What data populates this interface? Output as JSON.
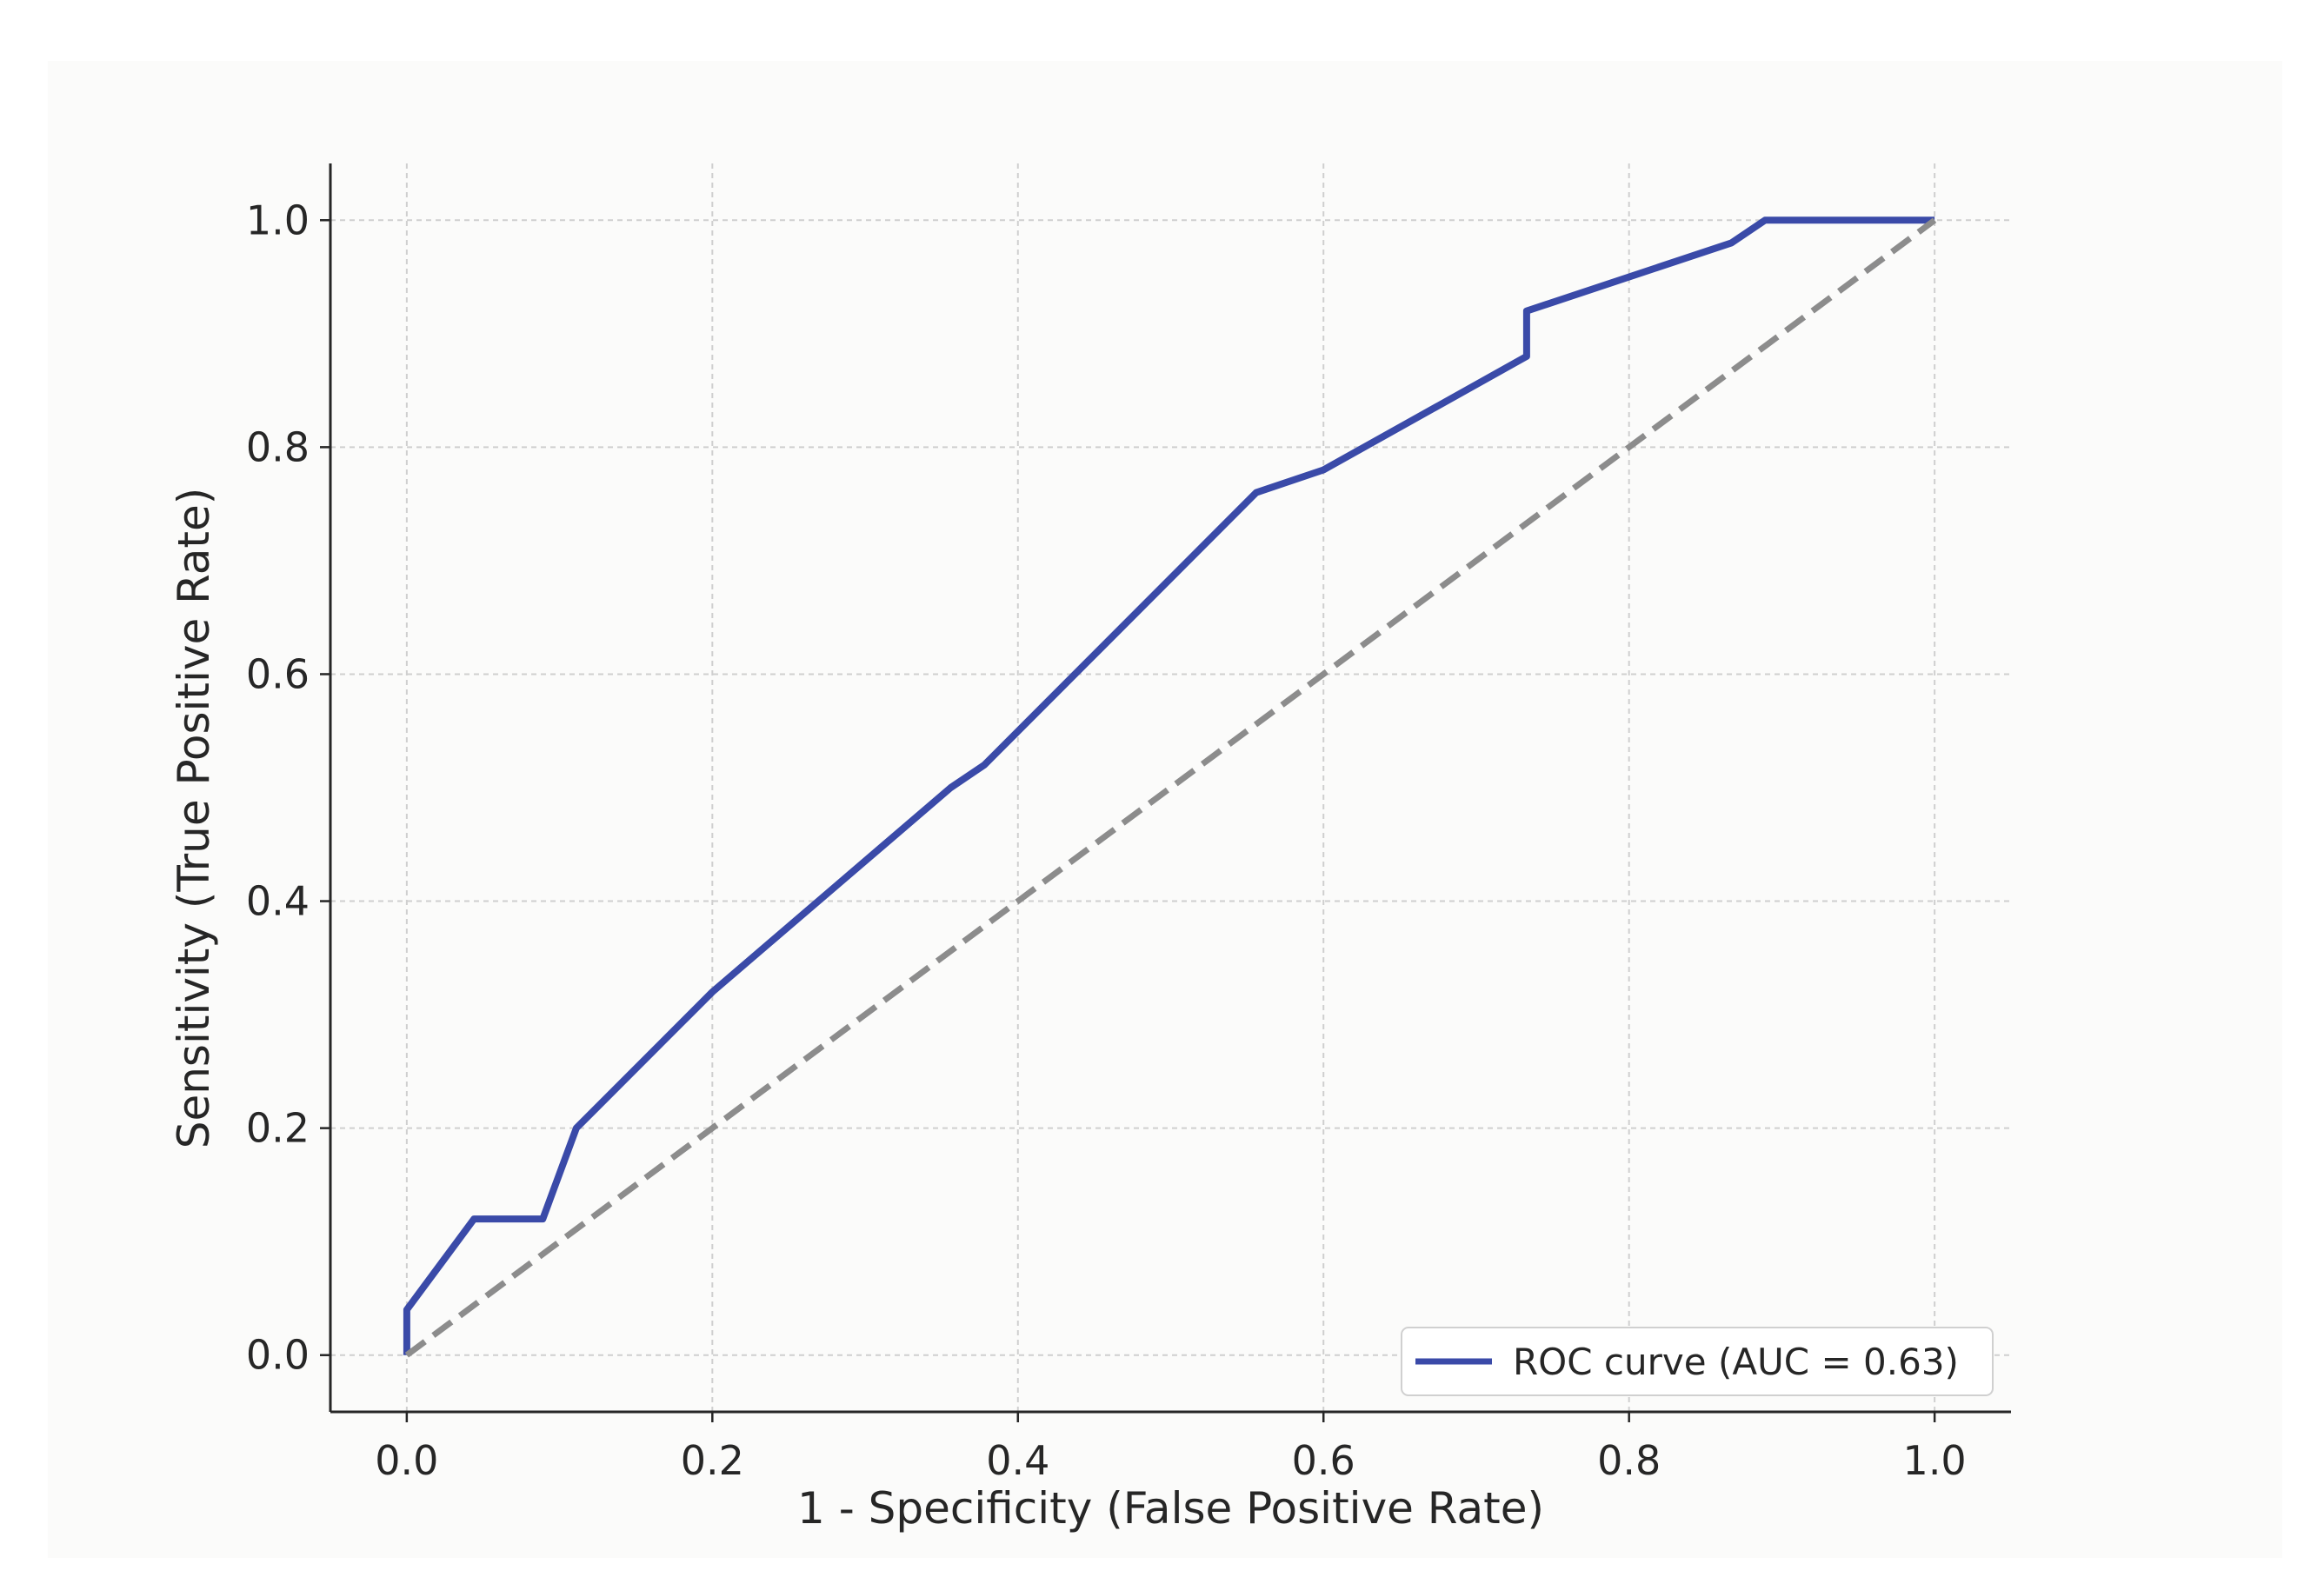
{
  "chart_data": {
    "type": "line",
    "title": "",
    "xlabel": "1 - Specificity (False Positive Rate)",
    "ylabel": "Sensitivity (True Positive Rate)",
    "xlim": [
      -0.05,
      1.05
    ],
    "ylim": [
      -0.05,
      1.05
    ],
    "x_ticks": [
      "0.0",
      "0.2",
      "0.4",
      "0.6",
      "0.8",
      "1.0"
    ],
    "y_ticks": [
      "0.0",
      "0.2",
      "0.4",
      "0.6",
      "0.8",
      "1.0"
    ],
    "grid": true,
    "legend_position": "lower-right",
    "series": [
      {
        "name": "ROC curve (AUC = 0.63)",
        "color": "#3a4aa8",
        "style": "solid",
        "points": [
          [
            0.0,
            0.0
          ],
          [
            0.0,
            0.04
          ],
          [
            0.044,
            0.12
          ],
          [
            0.089,
            0.12
          ],
          [
            0.111,
            0.2
          ],
          [
            0.2,
            0.32
          ],
          [
            0.356,
            0.5
          ],
          [
            0.378,
            0.52
          ],
          [
            0.556,
            0.76
          ],
          [
            0.6,
            0.78
          ],
          [
            0.733,
            0.88
          ],
          [
            0.733,
            0.92
          ],
          [
            0.867,
            0.98
          ],
          [
            0.889,
            1.0
          ],
          [
            1.0,
            1.0
          ]
        ]
      },
      {
        "color": "#8c8c8c",
        "style": "dashed",
        "points": [
          [
            0.0,
            0.0
          ],
          [
            1.0,
            1.0
          ]
        ]
      }
    ]
  }
}
